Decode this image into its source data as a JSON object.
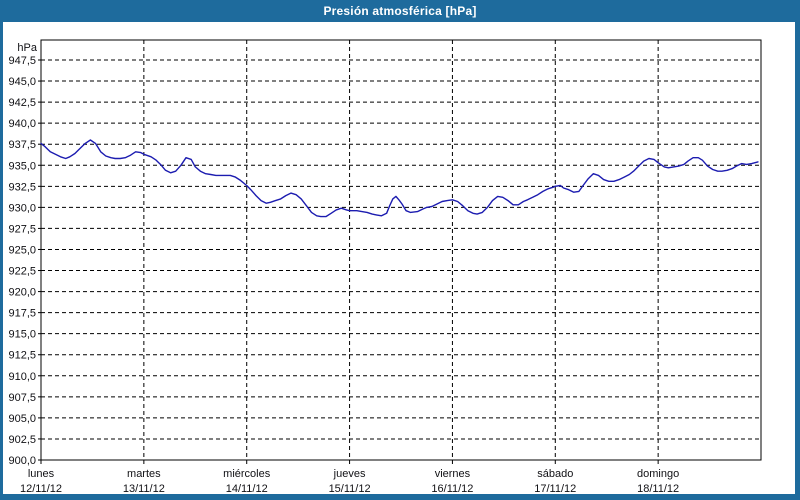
{
  "window": {
    "title": "Presión atmosférica [hPa]"
  },
  "colors": {
    "titlebar": "#1e6b9d",
    "frame": "#1e6b9d",
    "background": "#ffffff",
    "grid": "#000000",
    "text": "#101014",
    "line": "#1c1cb0"
  },
  "chart_data": {
    "type": "line",
    "title": "Presión atmosférica [hPa]",
    "ylabel": "hPa",
    "ylim": [
      900,
      947.5
    ],
    "ytick_step": 2.5,
    "ytick_labels": [
      "947,5",
      "945,0",
      "942,5",
      "940,0",
      "937,5",
      "935,0",
      "932,5",
      "930,0",
      "927,5",
      "925,0",
      "922,5",
      "920,0",
      "917,5",
      "915,0",
      "912,5",
      "910,0",
      "907,5",
      "905,0",
      "902,5",
      "900,0"
    ],
    "x_categories": [
      {
        "day": "lunes",
        "date": "12/11/12"
      },
      {
        "day": "martes",
        "date": "13/11/12"
      },
      {
        "day": "miércoles",
        "date": "14/11/12"
      },
      {
        "day": "jueves",
        "date": "15/11/12"
      },
      {
        "day": "viernes",
        "date": "16/11/12"
      },
      {
        "day": "sábado",
        "date": "17/11/12"
      },
      {
        "day": "domingo",
        "date": "18/11/12"
      }
    ],
    "xlim_days": [
      0,
      7
    ],
    "grid": "dashed",
    "legend": "none",
    "series": [
      {
        "name": "Presión atmosférica",
        "unit": "hPa",
        "color": "#1c1cb0",
        "points": [
          [
            0.0,
            937.6
          ],
          [
            0.04,
            937.2
          ],
          [
            0.09,
            936.6
          ],
          [
            0.14,
            936.3
          ],
          [
            0.19,
            936.0
          ],
          [
            0.24,
            935.8
          ],
          [
            0.28,
            936.0
          ],
          [
            0.33,
            936.4
          ],
          [
            0.38,
            937.0
          ],
          [
            0.43,
            937.6
          ],
          [
            0.48,
            938.0
          ],
          [
            0.53,
            937.6
          ],
          [
            0.58,
            936.6
          ],
          [
            0.63,
            936.1
          ],
          [
            0.68,
            935.9
          ],
          [
            0.72,
            935.8
          ],
          [
            0.77,
            935.8
          ],
          [
            0.82,
            935.9
          ],
          [
            0.87,
            936.2
          ],
          [
            0.92,
            936.6
          ],
          [
            0.97,
            936.5
          ],
          [
            1.0,
            936.3
          ],
          [
            1.07,
            936.0
          ],
          [
            1.12,
            935.6
          ],
          [
            1.17,
            935.0
          ],
          [
            1.21,
            934.4
          ],
          [
            1.26,
            934.1
          ],
          [
            1.31,
            934.3
          ],
          [
            1.36,
            935.0
          ],
          [
            1.41,
            935.9
          ],
          [
            1.46,
            935.7
          ],
          [
            1.5,
            934.8
          ],
          [
            1.55,
            934.3
          ],
          [
            1.6,
            934.0
          ],
          [
            1.65,
            933.9
          ],
          [
            1.7,
            933.8
          ],
          [
            1.75,
            933.8
          ],
          [
            1.8,
            933.8
          ],
          [
            1.84,
            933.8
          ],
          [
            1.89,
            933.6
          ],
          [
            1.94,
            933.2
          ],
          [
            2.0,
            932.6
          ],
          [
            2.04,
            932.1
          ],
          [
            2.09,
            931.4
          ],
          [
            2.14,
            930.8
          ],
          [
            2.19,
            930.5
          ],
          [
            2.23,
            930.6
          ],
          [
            2.28,
            930.8
          ],
          [
            2.33,
            931.0
          ],
          [
            2.38,
            931.4
          ],
          [
            2.43,
            931.7
          ],
          [
            2.48,
            931.5
          ],
          [
            2.53,
            931.0
          ],
          [
            2.58,
            930.2
          ],
          [
            2.63,
            929.4
          ],
          [
            2.68,
            929.0
          ],
          [
            2.72,
            928.9
          ],
          [
            2.77,
            928.9
          ],
          [
            2.82,
            929.3
          ],
          [
            2.87,
            929.7
          ],
          [
            2.92,
            929.9
          ],
          [
            2.97,
            929.7
          ],
          [
            3.0,
            929.6
          ],
          [
            3.07,
            929.6
          ],
          [
            3.12,
            929.5
          ],
          [
            3.17,
            929.4
          ],
          [
            3.22,
            929.2
          ],
          [
            3.26,
            929.1
          ],
          [
            3.31,
            929.0
          ],
          [
            3.36,
            929.3
          ],
          [
            3.39,
            930.2
          ],
          [
            3.42,
            931.0
          ],
          [
            3.45,
            931.3
          ],
          [
            3.48,
            930.9
          ],
          [
            3.51,
            930.4
          ],
          [
            3.55,
            929.6
          ],
          [
            3.59,
            929.4
          ],
          [
            3.66,
            929.5
          ],
          [
            3.71,
            929.8
          ],
          [
            3.75,
            930.0
          ],
          [
            3.8,
            930.1
          ],
          [
            3.85,
            930.4
          ],
          [
            3.9,
            930.7
          ],
          [
            3.95,
            930.8
          ],
          [
            4.0,
            930.9
          ],
          [
            4.05,
            930.7
          ],
          [
            4.1,
            930.2
          ],
          [
            4.15,
            929.6
          ],
          [
            4.2,
            929.3
          ],
          [
            4.24,
            929.2
          ],
          [
            4.29,
            929.4
          ],
          [
            4.34,
            930.0
          ],
          [
            4.39,
            930.8
          ],
          [
            4.44,
            931.3
          ],
          [
            4.49,
            931.2
          ],
          [
            4.54,
            930.8
          ],
          [
            4.59,
            930.3
          ],
          [
            4.64,
            930.3
          ],
          [
            4.69,
            930.7
          ],
          [
            4.73,
            930.9
          ],
          [
            4.78,
            931.2
          ],
          [
            4.83,
            931.5
          ],
          [
            4.88,
            931.9
          ],
          [
            4.93,
            932.2
          ],
          [
            4.98,
            932.4
          ],
          [
            5.0,
            932.5
          ],
          [
            5.05,
            932.6
          ],
          [
            5.08,
            932.3
          ],
          [
            5.13,
            932.1
          ],
          [
            5.18,
            931.8
          ],
          [
            5.23,
            931.9
          ],
          [
            5.27,
            932.6
          ],
          [
            5.32,
            933.4
          ],
          [
            5.37,
            934.0
          ],
          [
            5.42,
            933.8
          ],
          [
            5.47,
            933.3
          ],
          [
            5.52,
            933.1
          ],
          [
            5.57,
            933.1
          ],
          [
            5.62,
            933.3
          ],
          [
            5.67,
            933.6
          ],
          [
            5.72,
            933.9
          ],
          [
            5.76,
            934.3
          ],
          [
            5.81,
            934.9
          ],
          [
            5.86,
            935.5
          ],
          [
            5.91,
            935.8
          ],
          [
            5.96,
            935.7
          ],
          [
            6.0,
            935.3
          ],
          [
            6.06,
            934.8
          ],
          [
            6.1,
            934.7
          ],
          [
            6.15,
            934.8
          ],
          [
            6.2,
            934.9
          ],
          [
            6.25,
            935.1
          ],
          [
            6.29,
            935.5
          ],
          [
            6.34,
            935.9
          ],
          [
            6.39,
            935.9
          ],
          [
            6.43,
            935.6
          ],
          [
            6.48,
            934.9
          ],
          [
            6.53,
            934.5
          ],
          [
            6.58,
            934.3
          ],
          [
            6.62,
            934.3
          ],
          [
            6.67,
            934.4
          ],
          [
            6.72,
            934.6
          ],
          [
            6.76,
            934.9
          ],
          [
            6.81,
            935.2
          ],
          [
            6.86,
            935.1
          ],
          [
            6.91,
            935.2
          ],
          [
            6.97,
            935.4
          ]
        ]
      }
    ]
  }
}
